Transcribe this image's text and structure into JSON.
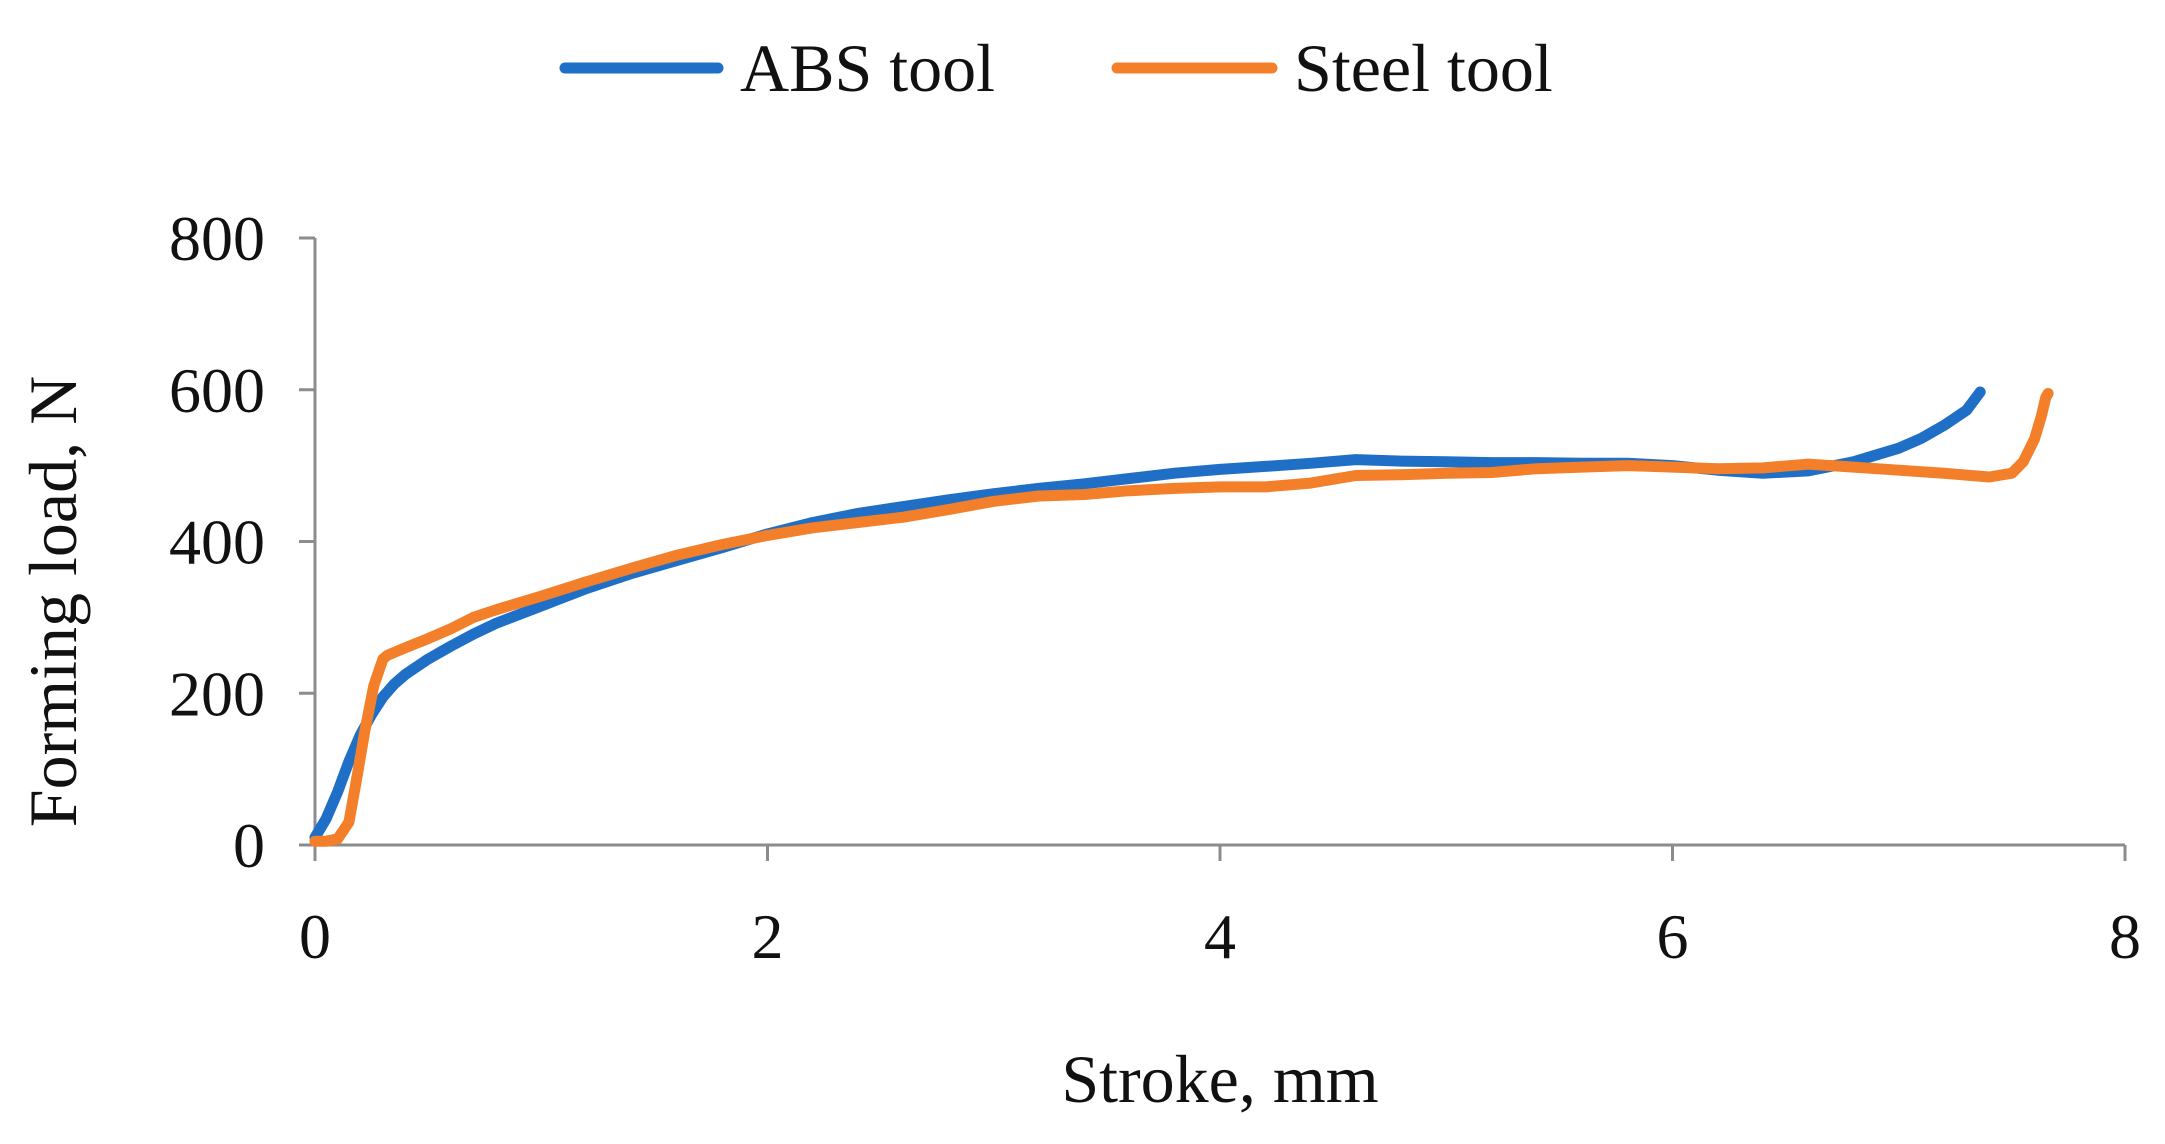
{
  "chart_data": {
    "type": "line",
    "xlabel": "Stroke, mm",
    "ylabel": "Forming load, N",
    "xlim": [
      0,
      8
    ],
    "ylim": [
      0,
      800
    ],
    "x_ticks": [
      "0",
      "2",
      "4",
      "6",
      "8"
    ],
    "y_ticks": [
      "0",
      "200",
      "400",
      "600",
      "800"
    ],
    "grid": false,
    "legend_position": "top-center",
    "series": [
      {
        "name": "ABS tool",
        "color": "#1f6fc6",
        "x": [
          0,
          0.05,
          0.1,
          0.15,
          0.2,
          0.25,
          0.3,
          0.35,
          0.4,
          0.5,
          0.6,
          0.7,
          0.8,
          1.0,
          1.2,
          1.4,
          1.6,
          1.8,
          2.0,
          2.2,
          2.4,
          2.6,
          2.8,
          3.0,
          3.2,
          3.4,
          3.6,
          3.8,
          4.0,
          4.2,
          4.4,
          4.6,
          4.8,
          5.0,
          5.2,
          5.4,
          5.6,
          5.8,
          6.0,
          6.2,
          6.4,
          6.6,
          6.8,
          7.0,
          7.1,
          7.2,
          7.3,
          7.36
        ],
        "y": [
          10,
          35,
          70,
          110,
          145,
          172,
          195,
          212,
          225,
          245,
          262,
          278,
          292,
          315,
          338,
          358,
          375,
          392,
          410,
          425,
          437,
          446,
          455,
          463,
          470,
          476,
          483,
          490,
          495,
          499,
          503,
          508,
          506,
          505,
          504,
          504,
          503,
          503,
          500,
          494,
          490,
          493,
          505,
          523,
          536,
          553,
          573,
          597
        ]
      },
      {
        "name": "Steel tool",
        "color": "#f47f2a",
        "x": [
          0,
          0.05,
          0.1,
          0.15,
          0.18,
          0.22,
          0.26,
          0.3,
          0.32,
          0.4,
          0.5,
          0.6,
          0.7,
          0.8,
          1.0,
          1.2,
          1.4,
          1.6,
          1.8,
          2.0,
          2.2,
          2.4,
          2.6,
          2.8,
          3.0,
          3.2,
          3.4,
          3.6,
          3.8,
          4.0,
          4.2,
          4.4,
          4.6,
          4.8,
          5.0,
          5.2,
          5.4,
          5.6,
          5.8,
          6.0,
          6.2,
          6.4,
          6.6,
          6.8,
          7.0,
          7.2,
          7.4,
          7.5,
          7.55,
          7.6,
          7.63,
          7.65,
          7.66
        ],
        "y": [
          5,
          5,
          8,
          30,
          80,
          150,
          210,
          245,
          250,
          260,
          272,
          285,
          300,
          310,
          328,
          347,
          365,
          382,
          396,
          408,
          418,
          425,
          432,
          442,
          453,
          460,
          462,
          467,
          470,
          472,
          472,
          477,
          487,
          488,
          490,
          491,
          496,
          498,
          500,
          498,
          496,
          497,
          502,
          498,
          494,
          490,
          485,
          490,
          505,
          535,
          565,
          590,
          595
        ]
      }
    ]
  }
}
